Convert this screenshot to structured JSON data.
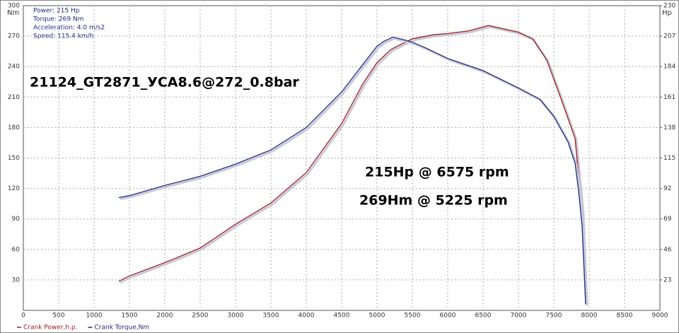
{
  "chart_data": {
    "type": "line",
    "title": "21124_GT2871_УСА8.6@272_0.8bar",
    "info": [
      "Power: 215 Hp",
      "Torque: 269 Nm",
      "Acceleration: 4.0 m/s2",
      "Speed: 115.4 km/h"
    ],
    "annotations": [
      "215Hp @ 6575 rpm",
      "269Hm @ 5225 rpm"
    ],
    "ylabel": "Nm",
    "y2label": "Hp",
    "xlim": [
      0,
      9000
    ],
    "xticks": [
      0,
      500,
      1000,
      1500,
      2000,
      2500,
      3000,
      3500,
      4000,
      4500,
      5000,
      5500,
      6000,
      6500,
      7000,
      7500,
      8000,
      8500,
      9000
    ],
    "ylim": [
      0,
      300
    ],
    "yticks": [
      30,
      60,
      90,
      120,
      150,
      180,
      210,
      240,
      270,
      300
    ],
    "y2lim": [
      0,
      230
    ],
    "y2ticks": [
      23,
      46,
      69,
      92,
      115,
      138,
      161,
      184,
      207,
      230
    ],
    "grid": true,
    "series": [
      {
        "name": "Crank Power,h.p.",
        "color": "#a01c1c",
        "axis": "y2",
        "x": [
          1350,
          1500,
          2000,
          2500,
          3000,
          3500,
          4000,
          4500,
          4800,
          5000,
          5200,
          5500,
          5800,
          6000,
          6300,
          6575,
          7000,
          7200,
          7400,
          7600,
          7800,
          7900,
          7950
        ],
        "values": [
          22,
          26,
          36,
          47,
          65,
          81,
          104,
          141,
          171,
          187,
          197,
          205,
          208,
          209,
          211,
          215,
          210,
          205,
          189,
          160,
          130,
          74,
          5
        ]
      },
      {
        "name": "Crank Torque,Nm",
        "color": "#1f2a80",
        "x": [
          1350,
          1500,
          2000,
          2500,
          3000,
          3500,
          4000,
          4500,
          4800,
          5000,
          5100,
          5225,
          5400,
          5500,
          5700,
          6000,
          6500,
          7000,
          7300,
          7500,
          7700,
          7800,
          7850,
          7900,
          7950
        ],
        "values": [
          111,
          113,
          123,
          132,
          144,
          158,
          180,
          215,
          242,
          260,
          265,
          269,
          266,
          264,
          258,
          248,
          236,
          219,
          208,
          191,
          166,
          145,
          118,
          83,
          6
        ]
      }
    ]
  }
}
